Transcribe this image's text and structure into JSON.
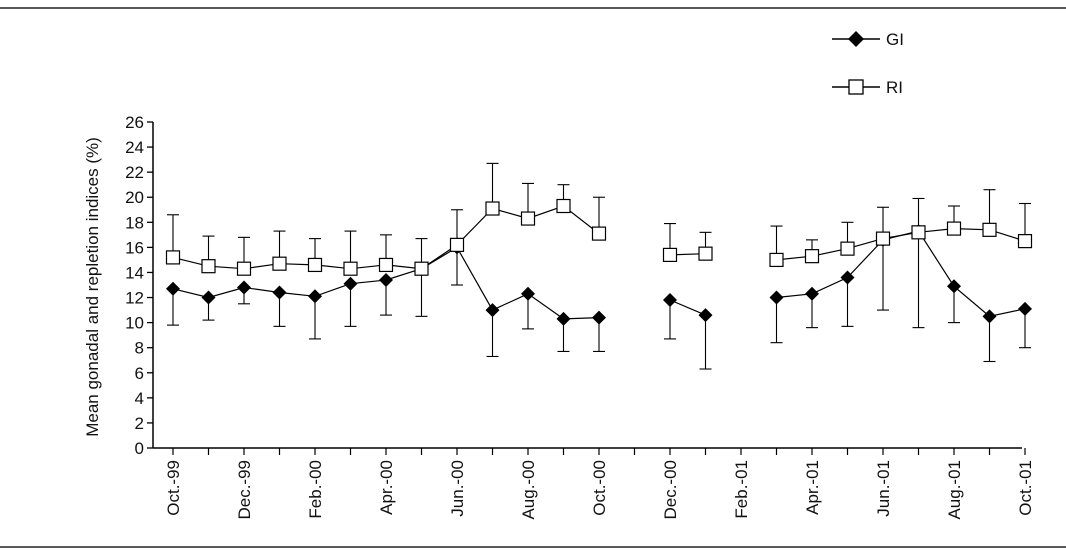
{
  "chart_data": {
    "type": "line",
    "title": "",
    "xlabel": "",
    "ylabel": "Mean gonadal and repletion indices (%)",
    "ylim": [
      0,
      26
    ],
    "yticks": [
      0,
      2,
      4,
      6,
      8,
      10,
      12,
      14,
      16,
      18,
      20,
      22,
      24,
      26
    ],
    "x_month_count": 25,
    "x_tick_labels": [
      {
        "index": 0,
        "label": "Oct.-99"
      },
      {
        "index": 2,
        "label": "Dec.-99"
      },
      {
        "index": 4,
        "label": "Feb.-00"
      },
      {
        "index": 6,
        "label": "Apr.-00"
      },
      {
        "index": 8,
        "label": "Jun.-00"
      },
      {
        "index": 10,
        "label": "Aug.-00"
      },
      {
        "index": 12,
        "label": "Oct.-00"
      },
      {
        "index": 14,
        "label": "Dec.-00"
      },
      {
        "index": 16,
        "label": "Feb.-01"
      },
      {
        "index": 18,
        "label": "Apr.-01"
      },
      {
        "index": 20,
        "label": "Jun.-01"
      },
      {
        "index": 22,
        "label": "Aug.-01"
      },
      {
        "index": 24,
        "label": "Oct.-01"
      }
    ],
    "legend_position": "top-right",
    "grid": false,
    "series": [
      {
        "name": "GI",
        "marker": "filled-diamond",
        "color": "#000000",
        "points": [
          {
            "x": "Oct.-99",
            "y": 12.7,
            "low": 9.8,
            "high": null
          },
          {
            "x": "Nov.-99",
            "y": 12.0,
            "low": 10.2,
            "high": null
          },
          {
            "x": "Dec.-99",
            "y": 12.8,
            "low": 11.5,
            "high": null
          },
          {
            "x": "Jan.-00",
            "y": 12.4,
            "low": 9.7,
            "high": null
          },
          {
            "x": "Feb.-00",
            "y": 12.1,
            "low": 8.7,
            "high": null
          },
          {
            "x": "Mar.-00",
            "y": 13.1,
            "low": 9.7,
            "high": null
          },
          {
            "x": "Apr.-00",
            "y": 13.4,
            "low": 10.6,
            "high": null
          },
          {
            "x": "May-00",
            "y": 14.3,
            "low": 10.5,
            "high": null
          },
          {
            "x": "Jun.-00",
            "y": 16.0,
            "low": 13.0,
            "high": null
          },
          {
            "x": "Jul.-00",
            "y": 11.0,
            "low": 7.3,
            "high": null
          },
          {
            "x": "Aug.-00",
            "y": 12.3,
            "low": 9.5,
            "high": null
          },
          {
            "x": "Sep.-00",
            "y": 10.3,
            "low": 7.7,
            "high": null
          },
          {
            "x": "Oct.-00",
            "y": 10.4,
            "low": 7.7,
            "high": null
          },
          {
            "x": "Nov.-00",
            "y": null,
            "low": null,
            "high": null
          },
          {
            "x": "Dec.-00",
            "y": 11.8,
            "low": 8.7,
            "high": null
          },
          {
            "x": "Jan.-01",
            "y": 10.6,
            "low": 6.3,
            "high": null
          },
          {
            "x": "Feb.-01",
            "y": null,
            "low": null,
            "high": null
          },
          {
            "x": "Mar.-01",
            "y": 12.0,
            "low": 8.4,
            "high": null
          },
          {
            "x": "Apr.-01",
            "y": 12.3,
            "low": 9.6,
            "high": null
          },
          {
            "x": "May-01",
            "y": 13.6,
            "low": 9.7,
            "high": null
          },
          {
            "x": "Jun.-01",
            "y": 16.6,
            "low": 11.0,
            "high": null
          },
          {
            "x": "Jul.-01",
            "y": 17.3,
            "low": 9.6,
            "high": null
          },
          {
            "x": "Aug.-01",
            "y": 12.9,
            "low": 10.0,
            "high": null
          },
          {
            "x": "Sep.-01",
            "y": 10.5,
            "low": 6.9,
            "high": null
          },
          {
            "x": "Oct.-01",
            "y": 11.1,
            "low": 8.0,
            "high": null
          }
        ]
      },
      {
        "name": "RI",
        "marker": "open-square",
        "color": "#000000",
        "points": [
          {
            "x": "Oct.-99",
            "y": 15.2,
            "low": null,
            "high": 18.6
          },
          {
            "x": "Nov.-99",
            "y": 14.5,
            "low": null,
            "high": 16.9
          },
          {
            "x": "Dec.-99",
            "y": 14.3,
            "low": null,
            "high": 16.8
          },
          {
            "x": "Jan.-00",
            "y": 14.7,
            "low": null,
            "high": 17.3
          },
          {
            "x": "Feb.-00",
            "y": 14.6,
            "low": null,
            "high": 16.7
          },
          {
            "x": "Mar.-00",
            "y": 14.3,
            "low": null,
            "high": 17.3
          },
          {
            "x": "Apr.-00",
            "y": 14.6,
            "low": null,
            "high": 17.0
          },
          {
            "x": "May-00",
            "y": 14.3,
            "low": null,
            "high": 16.7
          },
          {
            "x": "Jun.-00",
            "y": 16.2,
            "low": null,
            "high": 19.0
          },
          {
            "x": "Jul.-00",
            "y": 19.1,
            "low": null,
            "high": 22.7
          },
          {
            "x": "Aug.-00",
            "y": 18.3,
            "low": null,
            "high": 21.1
          },
          {
            "x": "Sep.-00",
            "y": 19.3,
            "low": null,
            "high": 21.0
          },
          {
            "x": "Oct.-00",
            "y": 17.1,
            "low": null,
            "high": 20.0
          },
          {
            "x": "Nov.-00",
            "y": null,
            "low": null,
            "high": null
          },
          {
            "x": "Dec.-00",
            "y": 15.4,
            "low": null,
            "high": 17.9
          },
          {
            "x": "Jan.-01",
            "y": 15.5,
            "low": null,
            "high": 17.2
          },
          {
            "x": "Feb.-01",
            "y": null,
            "low": null,
            "high": null
          },
          {
            "x": "Mar.-01",
            "y": 15.0,
            "low": null,
            "high": 17.7
          },
          {
            "x": "Apr.-01",
            "y": 15.3,
            "low": null,
            "high": 16.6
          },
          {
            "x": "May-01",
            "y": 15.9,
            "low": null,
            "high": 18.0
          },
          {
            "x": "Jun.-01",
            "y": 16.7,
            "low": null,
            "high": 19.2
          },
          {
            "x": "Jul.-01",
            "y": 17.2,
            "low": null,
            "high": 19.9
          },
          {
            "x": "Aug.-01",
            "y": 17.5,
            "low": null,
            "high": 19.3
          },
          {
            "x": "Sep.-01",
            "y": 17.4,
            "low": null,
            "high": 20.6
          },
          {
            "x": "Oct.-01",
            "y": 16.5,
            "low": null,
            "high": 19.5
          }
        ]
      }
    ]
  }
}
